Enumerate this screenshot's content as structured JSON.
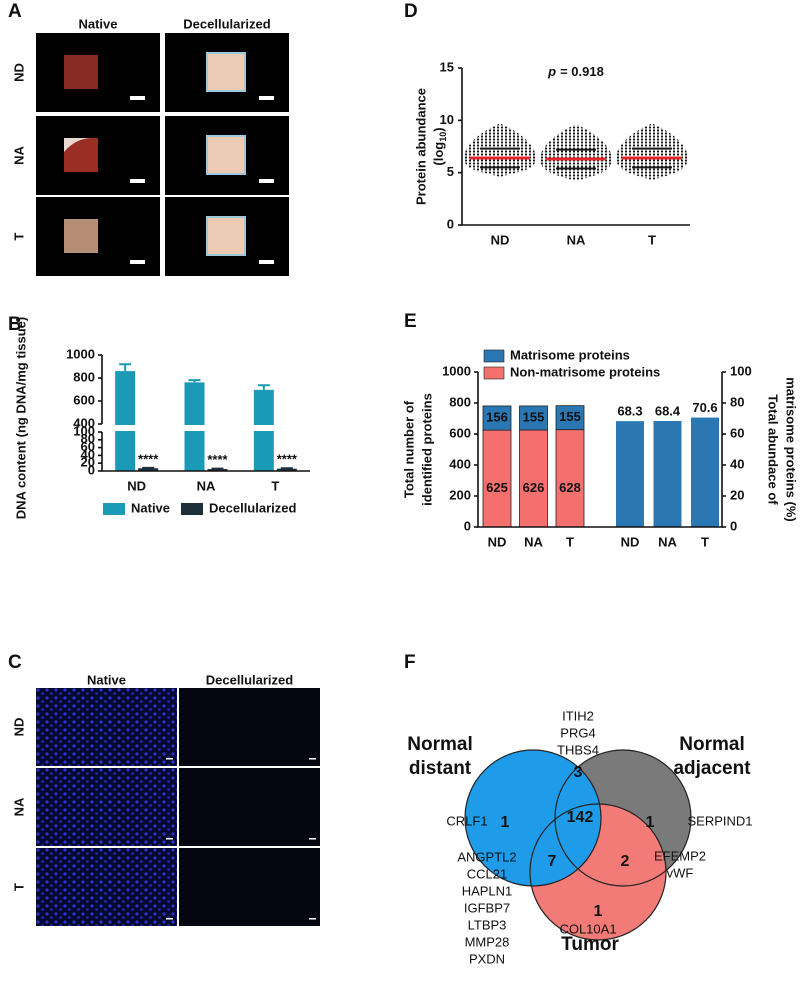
{
  "panel_a": {
    "label": "A",
    "columns": [
      "Native",
      "Decellularized"
    ],
    "rows": [
      "ND",
      "NA",
      "T"
    ]
  },
  "panel_c": {
    "label": "C",
    "columns": [
      "Native",
      "Decellularized"
    ],
    "rows": [
      "ND",
      "NA",
      "T"
    ]
  },
  "chart_data": [
    {
      "type": "bar",
      "label": "B",
      "y_label": "DNA content (ng DNA/mg tissue)",
      "categories": [
        "ND",
        "NA",
        "T"
      ],
      "series": [
        {
          "name": "Native",
          "color": "#1b9ab8",
          "values": [
            860,
            762,
            697
          ],
          "errors": [
            60,
            20,
            40
          ]
        },
        {
          "name": "Decellularized",
          "color": "#1d2f3b",
          "values": [
            7,
            5,
            6
          ],
          "errors": [
            1,
            1,
            1
          ],
          "annotations": [
            "****",
            "****",
            "****"
          ]
        }
      ],
      "ylim": [
        0,
        1000
      ],
      "y_break": [
        100,
        400
      ],
      "yticks": [
        0,
        20,
        40,
        60,
        80,
        100,
        400,
        600,
        800,
        1000
      ],
      "legend": "bottom"
    },
    {
      "type": "dot",
      "label": "D",
      "annotation": {
        "symbol": "p",
        "text": "= 0.918"
      },
      "y_label": "Protein abundance",
      "y_unit": {
        "prefix": "(log",
        "sub": "10",
        "suffix": ")"
      },
      "categories": [
        "ND",
        "NA",
        "T"
      ],
      "color": "#1a1a1a",
      "mean_color": "#e3262b",
      "means": [
        6.4,
        6.3,
        6.4
      ],
      "sd": [
        0.9,
        0.9,
        0.9
      ],
      "min": [
        4.6,
        4.2,
        4.3
      ],
      "max": [
        9.7,
        9.6,
        9.7
      ],
      "ylim": [
        0,
        15
      ],
      "yticks": [
        0,
        5,
        10,
        15
      ]
    },
    {
      "type": "stacked_bar",
      "label": "E",
      "y_label": [
        "Total number of",
        "identified proteins"
      ],
      "y2_label": [
        "Total abundace of",
        "matrisome proteins (%)"
      ],
      "categories": [
        "ND",
        "NA",
        "T"
      ],
      "series": [
        {
          "name": "Non-matrisome proteins",
          "color": "#f4706f",
          "values": [
            625,
            626,
            628
          ]
        },
        {
          "name": "Matrisome proteins",
          "color": "#2a77b4",
          "values": [
            156,
            155,
            155
          ]
        }
      ],
      "abundance": {
        "color": "#2a77b4",
        "values": [
          68.3,
          68.4,
          70.6
        ],
        "axis": "y2"
      },
      "ylim": [
        0,
        1000
      ],
      "yticks": [
        0,
        200,
        400,
        600,
        800,
        1000
      ],
      "y2lim": [
        0,
        100
      ],
      "y2ticks": [
        0,
        20,
        40,
        60,
        80,
        100
      ],
      "legend": "top-left"
    }
  ],
  "panel_f": {
    "label": "F",
    "sets": [
      {
        "name": [
          "Normal",
          "distant"
        ],
        "color": "#1e9cea"
      },
      {
        "name": [
          "Normal",
          "adjacent"
        ],
        "color": "#7a7a7a"
      },
      {
        "name": [
          "Tumor"
        ],
        "color": "#f37b77"
      }
    ],
    "regions": [
      {
        "count": 1,
        "proteins": [
          "CRLF1"
        ],
        "color": "#1e9cea"
      },
      {
        "count": 3,
        "proteins": [
          "ITIH2",
          "PRG4",
          "THBS4"
        ],
        "color": "#1e9cea"
      },
      {
        "count": 1,
        "proteins": [
          "SERPIND1"
        ],
        "color": "#7a7a7a"
      },
      {
        "count": 142
      },
      {
        "count": 7,
        "proteins": [
          "ANGPTL2",
          "CCL21",
          "HAPLN1",
          "IGFBP7",
          "LTBP3",
          "MMP28",
          "PXDN"
        ],
        "color": "#1e9cea"
      },
      {
        "count": 2,
        "proteins": [
          "EFEMP2",
          "vWF"
        ],
        "color": "#f37b77"
      },
      {
        "count": 1,
        "proteins": [
          "COL10A1"
        ],
        "color": "#f37b77"
      }
    ]
  }
}
